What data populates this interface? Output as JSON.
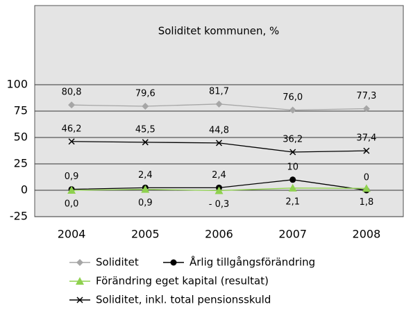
{
  "chart_data": {
    "type": "line",
    "title": "Soliditet kommunen, %",
    "categories": [
      "2004",
      "2005",
      "2006",
      "2007",
      "2008"
    ],
    "series": [
      {
        "name": "Soliditet",
        "color": "#a6a6a6",
        "marker": "diamond",
        "values": [
          80.8,
          79.6,
          81.7,
          76.0,
          77.3
        ],
        "value_labels": [
          "80,8",
          "79,6",
          "81,7",
          "76,0",
          "77,3"
        ]
      },
      {
        "name": "Årlig tillgångsförändring",
        "color": "#000000",
        "marker": "circle",
        "values": [
          0.9,
          2.4,
          2.4,
          10,
          0
        ],
        "value_labels": [
          "0,9",
          "2,4",
          "2,4",
          "10",
          "0"
        ]
      },
      {
        "name": "Förändring eget kapital (resultat)",
        "color": "#8fd14f",
        "marker": "triangle",
        "values": [
          0.0,
          0.9,
          -0.3,
          2.1,
          1.8
        ],
        "value_labels": [
          "0,0",
          "0,9",
          "- 0,3",
          "2,1",
          "1,8"
        ]
      },
      {
        "name": "Soliditet, inkl. total pensionsskuld",
        "color": "#000000",
        "marker": "x",
        "values": [
          46.2,
          45.5,
          44.8,
          36.2,
          37.4
        ],
        "value_labels": [
          "46,2",
          "45,5",
          "44,8",
          "36,2",
          "37,4"
        ]
      }
    ],
    "ylim": [
      -25,
      175
    ],
    "yticks": [
      -25,
      0,
      25,
      50,
      75,
      100
    ],
    "grid": true
  }
}
